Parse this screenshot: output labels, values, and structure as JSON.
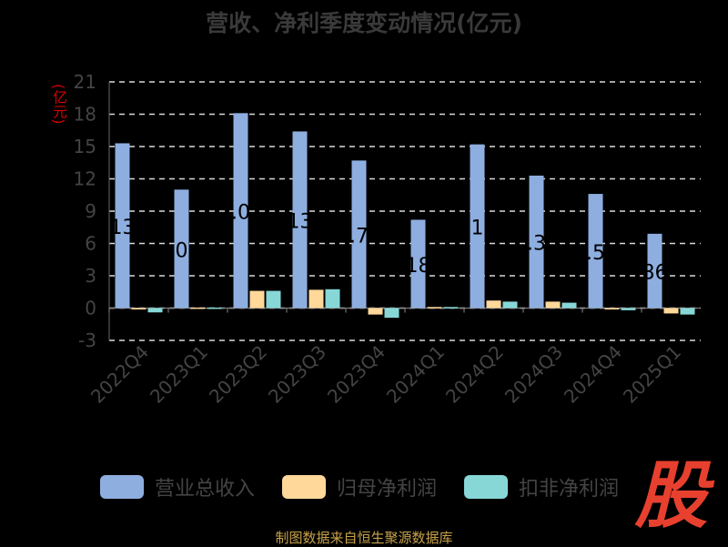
{
  "chart_data": {
    "type": "bar",
    "title": "营收、净利季度变动情况(亿元)",
    "ylabel": "(亿元)",
    "categories": [
      "2022Q4",
      "2023Q1",
      "2023Q2",
      "2023Q3",
      "2023Q4",
      "2024Q1",
      "2024Q2",
      "2024Q3",
      "2024Q4",
      "2025Q1"
    ],
    "ylim": [
      -3,
      21
    ],
    "yticks": [
      21,
      18,
      15,
      12,
      9,
      6,
      3,
      0,
      -3
    ],
    "grid": true,
    "legend_position": "bottom",
    "series": [
      {
        "name": "营业总收入",
        "color": "#8eaee0",
        "values": [
          15.3,
          11.0,
          18.1,
          16.4,
          13.7,
          8.2,
          15.2,
          12.3,
          10.6,
          6.9
        ]
      },
      {
        "name": "归母净利润",
        "color": "#ffd89a",
        "values": [
          -0.05,
          0.05,
          1.6,
          1.7,
          -0.6,
          0.1,
          0.7,
          0.6,
          -0.1,
          -0.5
        ]
      },
      {
        "name": "扣非净利润",
        "color": "#87d7d7",
        "values": [
          -0.4,
          0.05,
          1.6,
          1.75,
          -0.9,
          0.1,
          0.6,
          0.5,
          -0.2,
          -0.6
        ]
      }
    ],
    "annotations": [
      "13",
      "0",
      ".0",
      "13",
      ".7",
      "18",
      "1",
      ".3",
      ".5",
      "86"
    ]
  },
  "footer": "制图数据来自恒生聚源数据库",
  "logo_text": "股"
}
